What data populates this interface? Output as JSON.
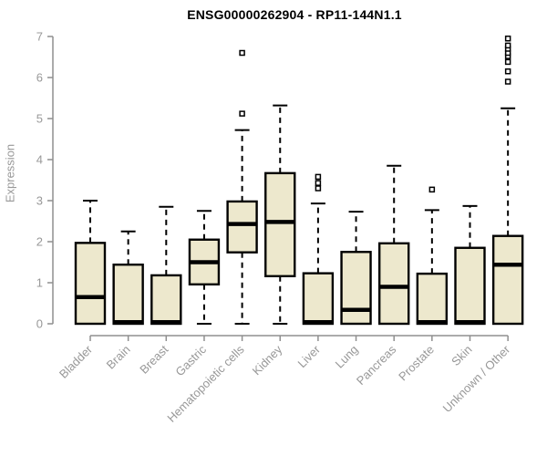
{
  "chart": {
    "title": "ENSG00000262904 - RP11-144N1.1",
    "ylabel": "Expression"
  },
  "chart_data": {
    "type": "boxplot",
    "title": "ENSG00000262904 - RP11-144N1.1",
    "xlabel": "",
    "ylabel": "Expression",
    "ylim": [
      0,
      7
    ],
    "yticks": [
      0,
      1,
      2,
      3,
      4,
      5,
      6,
      7
    ],
    "grid": false,
    "legend": "none",
    "categories": [
      "Bladder",
      "Brain",
      "Breast",
      "Gastric",
      "Hematopoietic cells",
      "Kidney",
      "Liver",
      "Lung",
      "Pancreas",
      "Prostate",
      "Skin",
      "Unknown / Other"
    ],
    "boxes": [
      {
        "category": "Bladder",
        "whisker_low": 0,
        "q1": 0,
        "median": 0.65,
        "q3": 1.97,
        "whisker_high": 3.0,
        "outliers": []
      },
      {
        "category": "Brain",
        "whisker_low": 0,
        "q1": 0,
        "median": 0.04,
        "q3": 1.44,
        "whisker_high": 2.25,
        "outliers": []
      },
      {
        "category": "Breast",
        "whisker_low": 0,
        "q1": 0,
        "median": 0.04,
        "q3": 1.18,
        "whisker_high": 2.85,
        "outliers": []
      },
      {
        "category": "Gastric",
        "whisker_low": 0,
        "q1": 0.96,
        "median": 1.5,
        "q3": 2.05,
        "whisker_high": 2.75,
        "outliers": []
      },
      {
        "category": "Hematopoietic cells",
        "whisker_low": 0,
        "q1": 1.74,
        "median": 2.43,
        "q3": 2.98,
        "whisker_high": 4.72,
        "outliers": [
          5.12,
          6.6
        ]
      },
      {
        "category": "Kidney",
        "whisker_low": 0,
        "q1": 1.16,
        "median": 2.48,
        "q3": 3.67,
        "whisker_high": 5.32,
        "outliers": []
      },
      {
        "category": "Liver",
        "whisker_low": 0,
        "q1": 0,
        "median": 0.04,
        "q3": 1.23,
        "whisker_high": 2.93,
        "outliers": [
          3.3,
          3.43,
          3.58
        ]
      },
      {
        "category": "Lung",
        "whisker_low": 0,
        "q1": 0,
        "median": 0.34,
        "q3": 1.75,
        "whisker_high": 2.73,
        "outliers": []
      },
      {
        "category": "Pancreas",
        "whisker_low": 0,
        "q1": 0,
        "median": 0.9,
        "q3": 1.96,
        "whisker_high": 3.85,
        "outliers": []
      },
      {
        "category": "Prostate",
        "whisker_low": 0,
        "q1": 0,
        "median": 0.04,
        "q3": 1.22,
        "whisker_high": 2.77,
        "outliers": [
          3.27
        ]
      },
      {
        "category": "Skin",
        "whisker_low": 0,
        "q1": 0,
        "median": 0.04,
        "q3": 1.85,
        "whisker_high": 2.87,
        "outliers": []
      },
      {
        "category": "Unknown / Other",
        "whisker_low": 0,
        "q1": 0,
        "median": 1.44,
        "q3": 2.14,
        "whisker_high": 5.25,
        "outliers": [
          5.9,
          6.15,
          6.38,
          6.52,
          6.6,
          6.7,
          6.78,
          6.95
        ]
      }
    ]
  },
  "colors": {
    "box_fill": "#EDE8CD",
    "box_stroke": "#000000",
    "median": "#000000",
    "whisker": "#000000",
    "outlier_fill": "#FFFFFF",
    "axis": "#8F8F8F",
    "tick_label": "#989898",
    "title": "#000000",
    "background": "#FFFFFF"
  }
}
